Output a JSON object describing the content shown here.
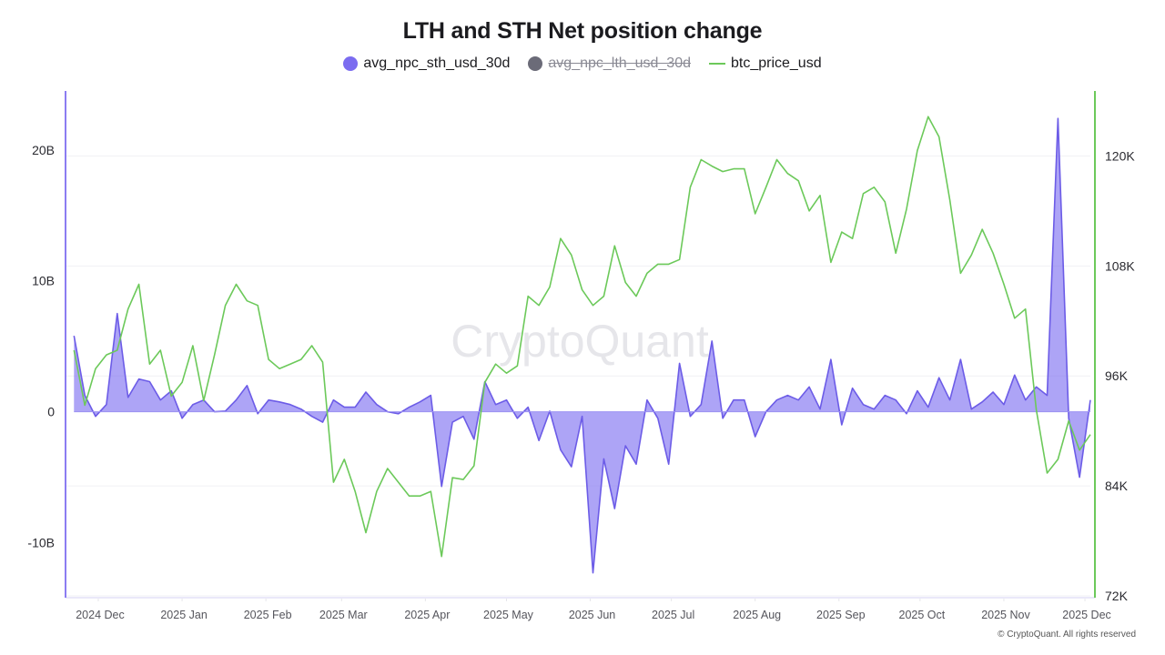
{
  "chart_data": {
    "type": "area+line",
    "title": "LTH and STH Net position change",
    "watermark": "CryptoQuant",
    "copyright": "© CryptoQuant. All rights reserved",
    "legend": [
      {
        "name": "avg_npc_sth_usd_30d",
        "color": "#7b6cf0",
        "marker": "circle",
        "hidden": false
      },
      {
        "name": "avg_npc_lth_usd_30d",
        "color": "#6b6b78",
        "marker": "circle",
        "hidden": true
      },
      {
        "name": "btc_price_usd",
        "color": "#6cc95a",
        "marker": "line",
        "hidden": false
      }
    ],
    "legend_placement": "top-center",
    "grid": true,
    "y_left": {
      "unit": "USD billions",
      "lim": [
        -14.2,
        24.5
      ],
      "ticks": [
        -10,
        0,
        10,
        20
      ],
      "tick_labels": [
        "-10B",
        "0",
        "10B",
        "20B"
      ],
      "axis_color": "#8b7cf2"
    },
    "y_right": {
      "unit": "USD thousands",
      "lim": [
        71.8,
        127.1
      ],
      "ticks": [
        72,
        84,
        96,
        108,
        120
      ],
      "tick_labels": [
        "72K",
        "84K",
        "96K",
        "108K",
        "120K"
      ],
      "axis_color": "#6cc95a"
    },
    "x_ticks": [
      {
        "date": "2024-12-01",
        "label": "2024 Dec"
      },
      {
        "date": "2025-01-01",
        "label": "2025 Jan"
      },
      {
        "date": "2025-02-01",
        "label": "2025 Feb"
      },
      {
        "date": "2025-03-01",
        "label": "2025 Mar"
      },
      {
        "date": "2025-04-01",
        "label": "2025 Apr"
      },
      {
        "date": "2025-05-01",
        "label": "2025 May"
      },
      {
        "date": "2025-06-01",
        "label": "2025 Jun"
      },
      {
        "date": "2025-07-01",
        "label": "2025 Jul"
      },
      {
        "date": "2025-08-01",
        "label": "2025 Aug"
      },
      {
        "date": "2025-09-01",
        "label": "2025 Sep"
      },
      {
        "date": "2025-10-01",
        "label": "2025 Oct"
      },
      {
        "date": "2025-11-01",
        "label": "2025 Nov"
      },
      {
        "date": "2025-12-01",
        "label": "2025 Dec"
      }
    ],
    "x": [
      "2024-11-22",
      "2024-11-26",
      "2024-11-30",
      "2024-12-04",
      "2024-12-08",
      "2024-12-12",
      "2024-12-16",
      "2024-12-20",
      "2024-12-24",
      "2024-12-28",
      "2025-01-01",
      "2025-01-05",
      "2025-01-09",
      "2025-01-13",
      "2025-01-17",
      "2025-01-21",
      "2025-01-25",
      "2025-01-29",
      "2025-02-02",
      "2025-02-06",
      "2025-02-10",
      "2025-02-14",
      "2025-02-18",
      "2025-02-22",
      "2025-02-26",
      "2025-03-02",
      "2025-03-06",
      "2025-03-10",
      "2025-03-14",
      "2025-03-18",
      "2025-03-22",
      "2025-03-26",
      "2025-03-30",
      "2025-04-03",
      "2025-04-07",
      "2025-04-11",
      "2025-04-15",
      "2025-04-19",
      "2025-04-23",
      "2025-04-27",
      "2025-05-01",
      "2025-05-05",
      "2025-05-09",
      "2025-05-13",
      "2025-05-17",
      "2025-05-21",
      "2025-05-25",
      "2025-05-29",
      "2025-06-02",
      "2025-06-06",
      "2025-06-10",
      "2025-06-14",
      "2025-06-18",
      "2025-06-22",
      "2025-06-26",
      "2025-06-30",
      "2025-07-04",
      "2025-07-08",
      "2025-07-12",
      "2025-07-16",
      "2025-07-20",
      "2025-07-24",
      "2025-07-28",
      "2025-08-01",
      "2025-08-05",
      "2025-08-09",
      "2025-08-13",
      "2025-08-17",
      "2025-08-21",
      "2025-08-25",
      "2025-08-29",
      "2025-09-02",
      "2025-09-06",
      "2025-09-10",
      "2025-09-14",
      "2025-09-18",
      "2025-09-22",
      "2025-09-26",
      "2025-09-30",
      "2025-10-04",
      "2025-10-08",
      "2025-10-12",
      "2025-10-16",
      "2025-10-20",
      "2025-10-24",
      "2025-10-28",
      "2025-11-01",
      "2025-11-05",
      "2025-11-09",
      "2025-11-13",
      "2025-11-17",
      "2025-11-21",
      "2025-11-25",
      "2025-11-29",
      "2025-12-03"
    ],
    "series": [
      {
        "name": "avg_npc_sth_usd_30d",
        "axis": "left",
        "type": "area",
        "values": [
          5.8,
          1.25,
          -0.35,
          0.55,
          7.5,
          1.1,
          2.5,
          2.3,
          0.9,
          1.6,
          -0.5,
          0.55,
          0.9,
          0,
          0.05,
          0.9,
          2.0,
          -0.15,
          0.9,
          0.75,
          0.55,
          0.2,
          -0.35,
          -0.8,
          0.9,
          0.35,
          0.35,
          1.5,
          0.55,
          0,
          -0.15,
          0.35,
          0.75,
          1.25,
          -5.7,
          -0.8,
          -0.35,
          -2.1,
          2.3,
          0.55,
          0.9,
          -0.5,
          0.35,
          -2.2,
          0.05,
          -2.9,
          -4.2,
          -0.35,
          -12.3,
          -3.6,
          -7.4,
          -2.6,
          -4.0,
          0.9,
          -0.5,
          -4.0,
          3.7,
          -0.35,
          0.55,
          5.4,
          -0.5,
          0.9,
          0.9,
          -1.9,
          0,
          0.9,
          1.25,
          0.9,
          1.9,
          0.2,
          4.0,
          -1.0,
          1.8,
          0.55,
          0.2,
          1.25,
          0.9,
          -0.15,
          1.6,
          0.35,
          2.6,
          0.9,
          4.0,
          0.2,
          0.75,
          1.5,
          0.55,
          2.8,
          0.9,
          1.9,
          1.25,
          22.4,
          -0.5,
          -5.0,
          0.9
        ]
      },
      {
        "name": "btc_price_usd",
        "axis": "right",
        "type": "line",
        "values": [
          98.8,
          92.8,
          96.8,
          98.3,
          98.8,
          103.3,
          106.0,
          97.3,
          98.8,
          93.8,
          95.3,
          99.3,
          93.3,
          98.3,
          103.7,
          106.0,
          104.2,
          103.7,
          97.8,
          96.8,
          97.3,
          97.8,
          99.3,
          97.5,
          84.4,
          86.9,
          83.4,
          78.9,
          83.4,
          85.9,
          84.4,
          82.9,
          82.9,
          83.4,
          76.3,
          84.9,
          84.7,
          86.2,
          95.3,
          97.3,
          96.3,
          97.1,
          104.7,
          103.7,
          105.7,
          111.0,
          109.2,
          105.4,
          103.7,
          104.7,
          110.2,
          106.2,
          104.7,
          107.2,
          108.2,
          108.2,
          108.7,
          116.6,
          119.6,
          118.9,
          118.3,
          118.6,
          118.6,
          113.7,
          116.6,
          119.6,
          118.1,
          117.3,
          114.0,
          115.7,
          108.4,
          111.7,
          111.0,
          115.9,
          116.6,
          115.0,
          109.4,
          114.2,
          120.6,
          124.3,
          122.1,
          115.2,
          107.2,
          109.2,
          112.0,
          109.4,
          106.0,
          102.3,
          103.3,
          92.3,
          85.4,
          86.9,
          91.1,
          87.9,
          89.6
        ]
      }
    ]
  }
}
